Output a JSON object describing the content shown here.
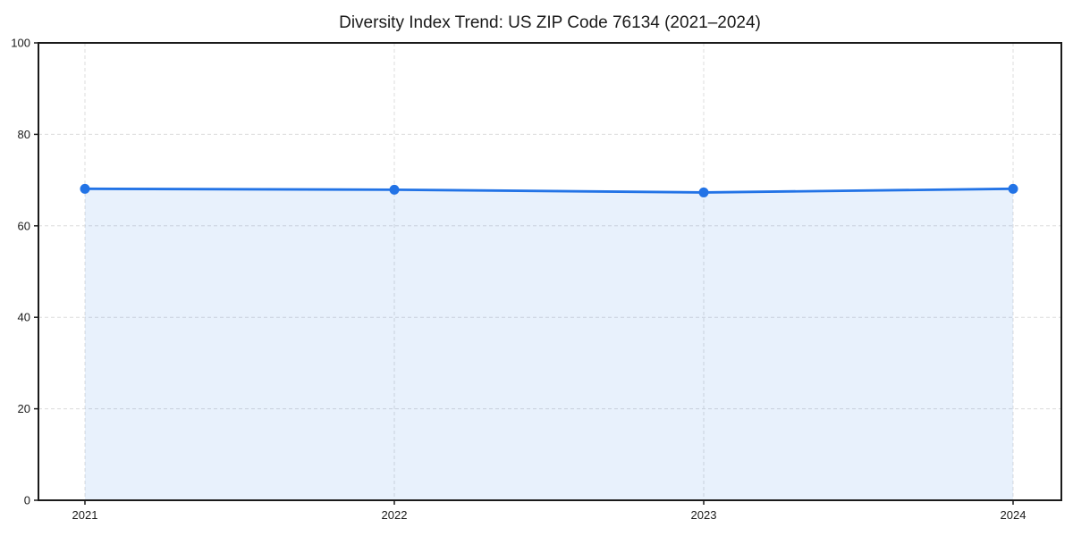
{
  "chart_data": {
    "type": "area",
    "title": "Diversity Index Trend: US ZIP Code 76134 (2021–2024)",
    "categories": [
      "2021",
      "2022",
      "2023",
      "2024"
    ],
    "values": [
      68.1,
      67.9,
      67.3,
      68.1
    ],
    "xlabel": "",
    "ylabel": "",
    "ylim": [
      0,
      100
    ],
    "yticks": [
      0,
      20,
      40,
      60,
      80,
      100
    ],
    "grid": true,
    "grid_style": "dashed",
    "legend": "none",
    "line_color": "#2273e6",
    "marker_color": "#2273e6",
    "fill_color": "rgba(34,115,230,0.10)",
    "grid_color": "#dcdcdc",
    "axis_color": "#1a1a1a",
    "text_color": "#1a1a1a",
    "background_color": "#ffffff"
  }
}
